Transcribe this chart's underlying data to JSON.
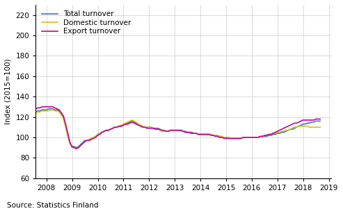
{
  "title": "",
  "ylabel": "Index (2015=100)",
  "xlabel": "",
  "source": "Source: Statistics Finland",
  "ylim": [
    60,
    230
  ],
  "yticks": [
    60,
    80,
    100,
    120,
    140,
    160,
    180,
    200,
    220
  ],
  "legend_labels": [
    "Total turnover",
    "Domestic turnover",
    "Export turnover"
  ],
  "colors": [
    "#4472C4",
    "#C8C800",
    "#CC0099"
  ],
  "line_width": 1.2,
  "background_color": "#ffffff",
  "grid_color": "#cccccc",
  "x_start_year": 2007.58,
  "x_end_year": 2019.08,
  "xtick_years": [
    2008,
    2009,
    2010,
    2011,
    2012,
    2013,
    2014,
    2015,
    2016,
    2017,
    2018,
    2019
  ],
  "total_turnover": [
    125,
    126,
    126,
    127,
    127,
    127,
    128,
    128,
    128,
    127,
    127,
    126,
    123,
    120,
    112,
    103,
    95,
    91,
    91,
    90,
    91,
    93,
    95,
    97,
    97,
    98,
    99,
    100,
    101,
    103,
    104,
    105,
    106,
    107,
    107,
    108,
    109,
    110,
    110,
    111,
    111,
    112,
    113,
    114,
    115,
    116,
    115,
    114,
    113,
    112,
    111,
    110,
    110,
    110,
    110,
    109,
    109,
    109,
    108,
    107,
    106,
    106,
    106,
    107,
    107,
    107,
    107,
    107,
    107,
    106,
    106,
    105,
    105,
    105,
    104,
    104,
    103,
    103,
    103,
    103,
    103,
    103,
    103,
    102,
    102,
    102,
    101,
    101,
    100,
    100,
    100,
    99,
    99,
    99,
    99,
    99,
    99,
    100,
    100,
    100,
    100,
    100,
    100,
    100,
    100,
    101,
    101,
    101,
    101,
    102,
    102,
    103,
    103,
    104,
    104,
    105,
    105,
    106,
    107,
    108,
    108,
    109,
    110,
    111,
    112,
    113,
    113,
    114,
    114,
    115,
    115,
    116,
    116,
    116
  ],
  "domestic_turnover": [
    124,
    125,
    125,
    126,
    126,
    126,
    126,
    127,
    127,
    126,
    126,
    125,
    122,
    118,
    110,
    101,
    94,
    90,
    90,
    89,
    90,
    92,
    94,
    96,
    97,
    98,
    99,
    100,
    101,
    103,
    104,
    105,
    106,
    107,
    107,
    108,
    109,
    110,
    110,
    111,
    112,
    113,
    114,
    115,
    116,
    117,
    116,
    115,
    113,
    112,
    111,
    110,
    110,
    110,
    110,
    109,
    108,
    108,
    107,
    106,
    106,
    106,
    106,
    107,
    107,
    107,
    107,
    107,
    106,
    106,
    105,
    105,
    104,
    104,
    104,
    104,
    103,
    103,
    103,
    103,
    103,
    103,
    103,
    102,
    102,
    102,
    101,
    101,
    100,
    100,
    100,
    99,
    99,
    99,
    99,
    99,
    99,
    100,
    100,
    100,
    100,
    100,
    100,
    100,
    100,
    101,
    101,
    102,
    102,
    103,
    103,
    104,
    104,
    105,
    105,
    106,
    106,
    107,
    107,
    108,
    109,
    110,
    110,
    111,
    111,
    111,
    111,
    111,
    110,
    110,
    110,
    110,
    110,
    110
  ],
  "export_turnover": [
    128,
    129,
    129,
    130,
    130,
    130,
    130,
    130,
    130,
    129,
    128,
    127,
    124,
    121,
    113,
    104,
    95,
    91,
    90,
    89,
    90,
    92,
    94,
    96,
    97,
    97,
    98,
    99,
    100,
    102,
    103,
    105,
    106,
    107,
    107,
    108,
    109,
    110,
    110,
    111,
    111,
    112,
    113,
    113,
    114,
    115,
    114,
    113,
    112,
    111,
    110,
    110,
    109,
    109,
    109,
    109,
    108,
    108,
    108,
    107,
    107,
    106,
    106,
    107,
    107,
    107,
    107,
    107,
    107,
    106,
    105,
    105,
    105,
    104,
    104,
    104,
    103,
    103,
    103,
    103,
    103,
    103,
    102,
    102,
    101,
    101,
    100,
    100,
    99,
    99,
    99,
    99,
    99,
    99,
    99,
    99,
    99,
    100,
    100,
    100,
    100,
    100,
    100,
    100,
    100,
    101,
    101,
    102,
    102,
    103,
    103,
    104,
    105,
    106,
    107,
    108,
    109,
    110,
    111,
    112,
    113,
    114,
    114,
    115,
    116,
    117,
    117,
    117,
    117,
    117,
    117,
    118,
    118,
    118
  ]
}
